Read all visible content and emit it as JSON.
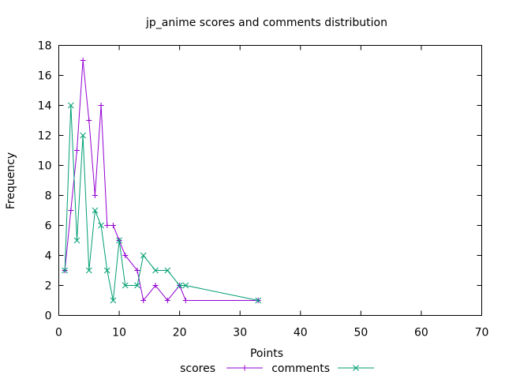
{
  "chart_data": {
    "type": "line",
    "title": "jp_anime scores and comments distribution",
    "xlabel": "Points",
    "ylabel": "Frequency",
    "xlim": [
      0,
      70
    ],
    "ylim": [
      0,
      18
    ],
    "xticks": [
      0,
      10,
      20,
      30,
      40,
      50,
      60,
      70
    ],
    "yticks": [
      0,
      2,
      4,
      6,
      8,
      10,
      12,
      14,
      16,
      18
    ],
    "grid": false,
    "legend_position": "bottom-center",
    "series": [
      {
        "name": "scores",
        "color": "#9400d3",
        "marker": "plus",
        "x": [
          1,
          2,
          3,
          4,
          5,
          6,
          7,
          8,
          9,
          10,
          11,
          13,
          14,
          16,
          18,
          20,
          21,
          33
        ],
        "y": [
          3,
          7,
          11,
          17,
          13,
          8,
          14,
          6,
          6,
          5,
          4,
          3,
          1,
          2,
          1,
          2,
          1,
          1
        ]
      },
      {
        "name": "comments",
        "color": "#009e73",
        "marker": "cross",
        "x": [
          1,
          2,
          3,
          4,
          5,
          6,
          7,
          8,
          9,
          10,
          11,
          13,
          14,
          16,
          18,
          20,
          21,
          33
        ],
        "y": [
          3,
          14,
          5,
          12,
          3,
          7,
          6,
          3,
          1,
          5,
          2,
          2,
          4,
          3,
          3,
          2,
          2,
          1
        ]
      }
    ]
  }
}
